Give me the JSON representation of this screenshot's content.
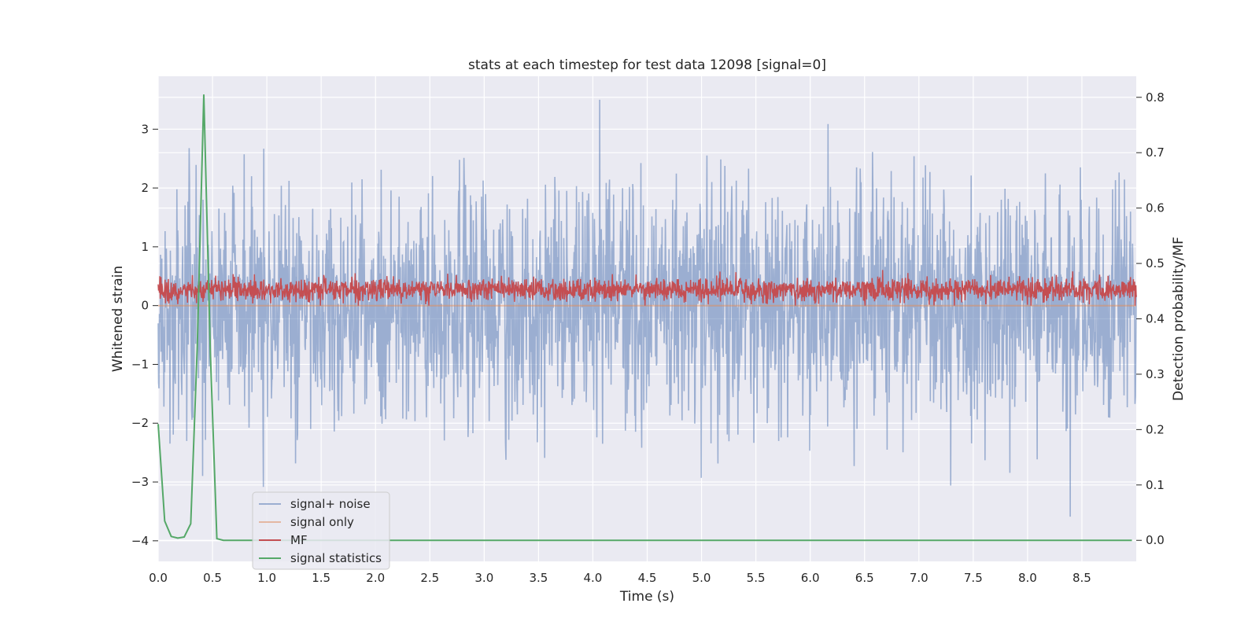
{
  "chart_data": {
    "type": "line",
    "title": "stats at each timestep for test data 12098 [signal=0]",
    "xlabel": "Time (s)",
    "ylabel": "Whitened strain",
    "y2label": "Detection probability/MF",
    "xlim": [
      0.0,
      9.0
    ],
    "ylim": [
      -4.35,
      3.9
    ],
    "y2lim": [
      -0.038,
      0.838
    ],
    "xticks": [
      0.0,
      0.5,
      1.0,
      1.5,
      2.0,
      2.5,
      3.0,
      3.5,
      4.0,
      4.5,
      5.0,
      5.5,
      6.0,
      6.5,
      7.0,
      7.5,
      8.0,
      8.5
    ],
    "xtick_labels": [
      "0.0",
      "0.5",
      "1.0",
      "1.5",
      "2.0",
      "2.5",
      "3.0",
      "3.5",
      "4.0",
      "4.5",
      "5.0",
      "5.5",
      "6.0",
      "6.5",
      "7.0",
      "7.5",
      "8.0",
      "8.5"
    ],
    "yticks": [
      -4,
      -3,
      -2,
      -1,
      0,
      1,
      2,
      3
    ],
    "ytick_labels": [
      "−4",
      "−3",
      "−2",
      "−1",
      "0",
      "1",
      "2",
      "3"
    ],
    "y2ticks": [
      0.0,
      0.1,
      0.2,
      0.3,
      0.4,
      0.5,
      0.6,
      0.7,
      0.8
    ],
    "y2tick_labels": [
      "0.0",
      "0.1",
      "0.2",
      "0.3",
      "0.4",
      "0.5",
      "0.6",
      "0.7",
      "0.8"
    ],
    "legend_position": "lower-left",
    "series": [
      {
        "name": "signal+ noise",
        "axis": "left",
        "color": "#4c72b0",
        "opacity": 0.5,
        "kind": "noise",
        "x_range": [
          0.0,
          9.0
        ],
        "amplitude_std": 1.0,
        "peak_abs": 3.5
      },
      {
        "name": "signal only",
        "axis": "left",
        "color": "#dd8452",
        "opacity": 0.5,
        "x": [
          0.0,
          9.0
        ],
        "y": [
          0.0,
          0.0
        ]
      },
      {
        "name": "MF",
        "axis": "left",
        "color": "#c44e52",
        "opacity": 1.0,
        "kind": "noise-abs",
        "x_range": [
          0.0,
          9.0
        ],
        "baseline": 0.27,
        "spread": 0.18,
        "peak": 1.0
      },
      {
        "name": "signal statistics",
        "axis": "right",
        "color": "#55a868",
        "opacity": 1.0,
        "x": [
          0.0,
          0.06,
          0.12,
          0.18,
          0.24,
          0.3,
          0.36,
          0.42,
          0.48,
          0.54,
          0.6,
          0.66,
          0.72,
          0.8,
          1.0,
          2.0,
          3.0,
          4.0,
          5.0,
          6.0,
          7.0,
          8.0,
          8.96
        ],
        "y": [
          0.21,
          0.035,
          0.007,
          0.004,
          0.006,
          0.03,
          0.35,
          0.805,
          0.34,
          0.003,
          0.0,
          0.0,
          0.0,
          0.0,
          0.0,
          0.0,
          0.0,
          0.0,
          0.0,
          0.0,
          0.0,
          0.0,
          0.0
        ]
      }
    ]
  },
  "colors": {
    "plot_background": "#eaeaf2",
    "grid": "#ffffff",
    "text": "#262626"
  }
}
